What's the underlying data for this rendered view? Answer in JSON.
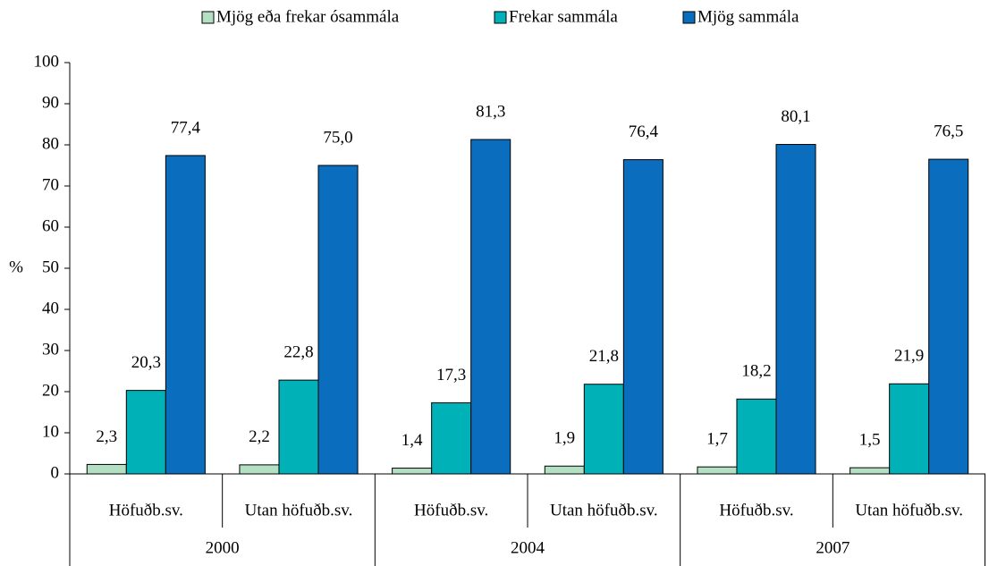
{
  "chart_data": {
    "type": "bar",
    "ylabel": "%",
    "groups": [
      {
        "name": "2000",
        "categories": [
          "Höfuðb.sv.",
          "Utan höfuðb.sv."
        ]
      },
      {
        "name": "2004",
        "categories": [
          "Höfuðb.sv.",
          "Utan höfuðb.sv."
        ]
      },
      {
        "name": "2007",
        "categories": [
          "Höfuðb.sv.",
          "Utan höfuðb.sv."
        ]
      }
    ],
    "series": [
      {
        "name": "Mjög eða frekar ósammála",
        "color": "#b3dfc2",
        "values": [
          2.3,
          2.2,
          1.4,
          1.9,
          1.7,
          1.5
        ],
        "value_labels": [
          "2,3",
          "2,2",
          "1,4",
          "1,9",
          "1,7",
          "1,5"
        ]
      },
      {
        "name": "Frekar sammála",
        "color": "#00b2b8",
        "values": [
          20.3,
          22.8,
          17.3,
          21.8,
          18.2,
          21.9
        ],
        "value_labels": [
          "20,3",
          "22,8",
          "17,3",
          "21,8",
          "18,2",
          "21,9"
        ]
      },
      {
        "name": "Mjög sammála",
        "color": "#0b6dbd",
        "values": [
          77.4,
          75.0,
          81.3,
          76.4,
          80.1,
          76.5
        ],
        "value_labels": [
          "77,4",
          "75,0",
          "81,3",
          "76,4",
          "80,1",
          "76,5"
        ]
      }
    ],
    "ylim": [
      0,
      100
    ],
    "yticks": [
      0,
      10,
      20,
      30,
      40,
      50,
      60,
      70,
      80,
      90,
      100
    ],
    "grid": false,
    "legend": "top"
  }
}
